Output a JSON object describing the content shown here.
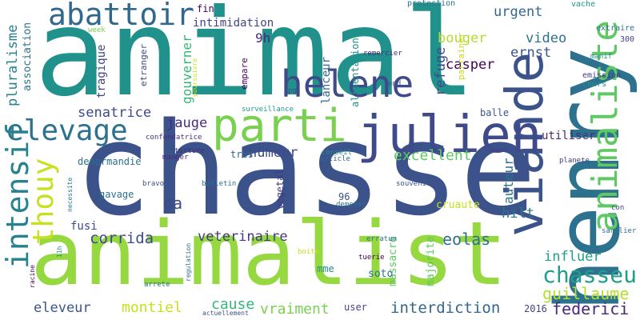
{
  "words": [
    {
      "text": "animal",
      "color": "#21918c"
    },
    {
      "text": "chasse",
      "color": "#3b528b"
    },
    {
      "text": "animalist",
      "color": "#95d840"
    },
    {
      "text": "henry",
      "color": "#2c728e"
    },
    {
      "text": "viande",
      "color": "#3b528b"
    },
    {
      "text": "julien",
      "color": "#3e4a89"
    },
    {
      "text": "parti",
      "color": "#7ad151"
    },
    {
      "text": "animaliste",
      "color": "#5ec962"
    },
    {
      "text": "helene",
      "color": "#3e4a89"
    },
    {
      "text": "abattoir",
      "color": "#31688e"
    },
    {
      "text": "elevage",
      "color": "#2c728e"
    },
    {
      "text": "intensif",
      "color": "#26828e"
    },
    {
      "text": "thouy",
      "color": "#c8e020"
    },
    {
      "text": "chasseur",
      "color": "#1f9e89"
    },
    {
      "text": "guillaume",
      "color": "#b5de2b"
    },
    {
      "text": "federici",
      "color": "#482878"
    },
    {
      "text": "interdiction",
      "color": "#31688e"
    },
    {
      "text": "corrida",
      "color": "#3e4a89"
    },
    {
      "text": "veterinaire",
      "color": "#443983"
    },
    {
      "text": "eolas",
      "color": "#2c728e"
    },
    {
      "text": "montiel",
      "color": "#c8e020"
    },
    {
      "text": "vraiment",
      "color": "#7ad151"
    },
    {
      "text": "cause",
      "color": "#35b779"
    },
    {
      "text": "eleveur",
      "color": "#39568c"
    },
    {
      "text": "excellent",
      "color": "#5ec962"
    },
    {
      "text": "humeur",
      "color": "#3e4a89"
    },
    {
      "text": "jauge",
      "color": "#472d7b"
    },
    {
      "text": "senatrice",
      "color": "#3e4a89"
    },
    {
      "text": "pluralisme",
      "color": "#26828e"
    },
    {
      "text": "association",
      "color": "#2c728e"
    },
    {
      "text": "gouverner",
      "color": "#35b779"
    },
    {
      "text": "refuge",
      "color": "#3e4a89"
    },
    {
      "text": "bouger",
      "color": "#b5de2b"
    },
    {
      "text": "casper",
      "color": "#440154"
    },
    {
      "text": "ernst",
      "color": "#39568c"
    },
    {
      "text": "urgent",
      "color": "#31688e"
    },
    {
      "text": "video",
      "color": "#2c728e"
    },
    {
      "text": "influer",
      "color": "#1f9e89"
    },
    {
      "text": "auteur",
      "color": "#2c728e"
    },
    {
      "text": "hilt",
      "color": "#2c728e"
    },
    {
      "text": "pa",
      "color": "#3e4a89"
    },
    {
      "text": "fusi",
      "color": "#3e4a89"
    },
    {
      "text": "utiliser",
      "color": "#482878"
    },
    {
      "text": "9h",
      "color": "#482878"
    },
    {
      "text": "intimidation",
      "color": "#414487"
    },
    {
      "text": "fin",
      "color": "#440154"
    },
    {
      "text": "tragique",
      "color": "#414487"
    },
    {
      "text": "etranger",
      "color": "#3e4a89"
    },
    {
      "text": "empare",
      "color": "#440154"
    },
    {
      "text": "lanceur",
      "color": "#31688e"
    },
    {
      "text": "alimentation",
      "color": "#21918c"
    },
    {
      "text": "balle",
      "color": "#39568c"
    },
    {
      "text": "cruaute",
      "color": "#c8e020"
    },
    {
      "text": "massacre",
      "color": "#5ec962"
    },
    {
      "text": "majorite",
      "color": "#5ec962"
    },
    {
      "text": "soto",
      "color": "#2c728e"
    },
    {
      "text": "mme",
      "color": "#21918c"
    },
    {
      "text": "user",
      "color": "#414487"
    },
    {
      "text": "tres",
      "color": "#31688e"
    },
    {
      "text": "vegetal",
      "color": "#443983"
    },
    {
      "text": "gavage",
      "color": "#2c728e"
    },
    {
      "text": "denormandie",
      "color": "#2c728e"
    },
    {
      "text": "96",
      "color": "#3b528b"
    },
    {
      "text": "2016",
      "color": "#414487"
    },
    {
      "text": "parrainer",
      "color": "#c8e020"
    },
    {
      "text": "protection",
      "color": "#2c728e"
    },
    {
      "text": "vache",
      "color": "#21918c"
    },
    {
      "text": "extraire",
      "color": "#2c728e"
    },
    {
      "text": "300",
      "color": "#414487"
    },
    {
      "text": "emission",
      "color": "#443983"
    },
    {
      "text": "cours",
      "color": "#21918c"
    },
    {
      "text": "manif",
      "color": "#21918c"
    },
    {
      "text": "remercier",
      "color": "#482878"
    },
    {
      "text": "end",
      "color": "#3b528b"
    },
    {
      "text": "week",
      "color": "#7ad151"
    },
    {
      "text": "pg",
      "color": "#3e4a89"
    },
    {
      "text": "poursuivre",
      "color": "#c8e020"
    },
    {
      "text": "surveillance",
      "color": "#1f9e89"
    },
    {
      "text": "confondatrice",
      "color": "#472d7b"
    },
    {
      "text": "torture",
      "color": "#472d7b"
    },
    {
      "text": "manger",
      "color": "#482878"
    },
    {
      "text": "conseil",
      "color": "#21918c"
    },
    {
      "text": "article",
      "color": "#31688e"
    },
    {
      "text": "bravo",
      "color": "#3b528b"
    },
    {
      "text": "bulletin",
      "color": "#2c728e"
    },
    {
      "text": "souvenir",
      "color": "#39568c"
    },
    {
      "text": "demeter",
      "color": "#2c728e"
    },
    {
      "text": "necessite",
      "color": "#2c728e"
    },
    {
      "text": "11h",
      "color": "#21918c"
    },
    {
      "text": "regulation",
      "color": "#2c728e"
    },
    {
      "text": "racine",
      "color": "#440154"
    },
    {
      "text": "arrete",
      "color": "#2c728e"
    },
    {
      "text": "boite",
      "color": "#c8e020"
    },
    {
      "text": "erratum",
      "color": "#2c728e"
    },
    {
      "text": "tuerie",
      "color": "#440154"
    },
    {
      "text": "actuellement",
      "color": "#3b528b"
    },
    {
      "text": "planete",
      "color": "#443983"
    },
    {
      "text": "re",
      "color": "#2c728e"
    },
    {
      "text": "con",
      "color": "#414487"
    },
    {
      "text": "sanglier",
      "color": "#2c728e"
    }
  ]
}
